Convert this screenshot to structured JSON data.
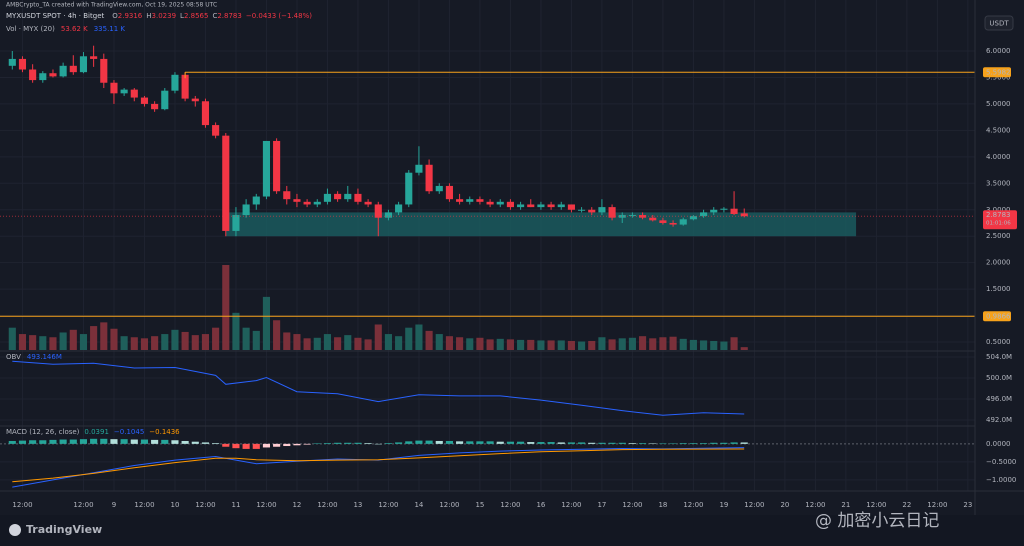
{
  "chart_data": {
    "type": "candlestick",
    "credit": "AMBCrypto_TA created with TradingView.com, Oct 19, 2025 08:58 UTC",
    "title": "MYXUSDT SPOT · 4h · Bitget",
    "ohlc_letters": [
      "O",
      "H",
      "L",
      "C"
    ],
    "change": "−0.0433 (−1.48%)",
    "currency": "USDT",
    "colors": {
      "up": "#26a69a",
      "down": "#f23645",
      "up_volume": "#1f5f5b",
      "down_volume": "#7b303a",
      "level": "#f7a21b",
      "zone": "#1a5b5e",
      "obv": "#2962ff",
      "macd": "#2962ff",
      "signal": "#ff9800"
    },
    "candles": {
      "open": [
        5.72,
        5.85,
        5.65,
        5.45,
        5.58,
        5.52,
        5.72,
        5.6,
        5.9,
        5.85,
        5.4,
        5.2,
        5.27,
        5.12,
        5.0,
        4.9,
        5.25,
        5.55,
        5.1,
        5.05,
        4.6,
        4.4,
        2.6,
        2.9,
        3.1,
        3.25,
        4.3,
        3.35,
        3.2,
        3.15,
        3.1,
        3.15,
        3.3,
        3.2,
        3.3,
        3.15,
        3.1,
        2.85,
        2.95,
        3.1,
        3.7,
        3.85,
        3.35,
        3.45,
        3.2,
        3.15,
        3.2,
        3.15,
        3.1,
        3.15,
        3.05,
        3.1,
        3.05,
        3.1,
        3.05,
        3.1,
        3.0,
        3.0,
        2.95,
        3.05,
        2.85,
        2.9,
        2.9,
        2.85,
        2.8,
        2.75,
        2.72,
        2.82,
        2.88,
        2.95,
        3.0,
        3.02,
        2.9316
      ],
      "high": [
        6.0,
        5.9,
        5.75,
        5.62,
        5.65,
        5.78,
        5.92,
        5.98,
        6.1,
        5.95,
        5.45,
        5.3,
        5.3,
        5.15,
        5.05,
        5.3,
        5.6,
        5.6,
        5.15,
        5.1,
        4.65,
        4.45,
        3.05,
        3.2,
        3.3,
        4.3,
        4.35,
        3.45,
        3.3,
        3.2,
        3.2,
        3.4,
        3.35,
        3.45,
        3.4,
        3.2,
        3.15,
        3.0,
        3.15,
        3.75,
        4.2,
        3.95,
        3.5,
        3.5,
        3.3,
        3.25,
        3.25,
        3.2,
        3.2,
        3.2,
        3.15,
        3.2,
        3.15,
        3.15,
        3.15,
        3.1,
        3.05,
        3.05,
        3.2,
        3.1,
        2.95,
        2.95,
        2.95,
        2.9,
        2.85,
        2.8,
        2.85,
        2.9,
        3.0,
        3.05,
        3.05,
        3.35,
        3.0239
      ],
      "low": [
        5.65,
        5.6,
        5.4,
        5.4,
        5.5,
        5.5,
        5.55,
        5.58,
        5.7,
        5.3,
        5.0,
        5.15,
        5.05,
        4.95,
        4.85,
        4.88,
        5.2,
        5.05,
        4.95,
        4.55,
        4.35,
        2.5,
        2.5,
        2.85,
        3.0,
        3.2,
        3.3,
        3.1,
        3.05,
        3.05,
        3.05,
        3.1,
        3.15,
        3.15,
        3.1,
        3.05,
        2.5,
        2.8,
        2.9,
        3.05,
        3.65,
        3.3,
        3.3,
        3.15,
        3.1,
        3.1,
        3.1,
        3.05,
        3.05,
        3.0,
        3.0,
        3.05,
        3.0,
        3.0,
        3.0,
        2.95,
        2.95,
        2.9,
        2.9,
        2.8,
        2.75,
        2.85,
        2.82,
        2.78,
        2.72,
        2.68,
        2.7,
        2.8,
        2.85,
        2.9,
        2.95,
        2.9,
        2.8565
      ],
      "close": [
        5.85,
        5.65,
        5.45,
        5.58,
        5.52,
        5.72,
        5.6,
        5.9,
        5.85,
        5.4,
        5.2,
        5.27,
        5.12,
        5.0,
        4.9,
        5.25,
        5.55,
        5.1,
        5.05,
        4.6,
        4.4,
        2.6,
        2.9,
        3.1,
        3.25,
        4.3,
        3.35,
        3.2,
        3.15,
        3.1,
        3.15,
        3.3,
        3.2,
        3.3,
        3.15,
        3.1,
        2.85,
        2.95,
        3.1,
        3.7,
        3.85,
        3.35,
        3.45,
        3.2,
        3.15,
        3.2,
        3.15,
        3.1,
        3.15,
        3.05,
        3.1,
        3.05,
        3.1,
        3.05,
        3.1,
        3.0,
        3.0,
        2.95,
        3.05,
        2.85,
        2.9,
        2.9,
        2.85,
        2.8,
        2.75,
        2.72,
        2.82,
        2.88,
        2.95,
        3.0,
        3.02,
        2.92,
        2.8783
      ]
    },
    "countdown": "01:01:06",
    "xlim": [
      -1.21,
      94.7
    ],
    "xticks": [
      {
        "value": 1,
        "label": "12:00"
      },
      {
        "value": 7,
        "label": "12:00"
      },
      {
        "value": 10,
        "label": "9"
      },
      {
        "value": 13,
        "label": "12:00"
      },
      {
        "value": 16,
        "label": "10"
      },
      {
        "value": 19,
        "label": "12:00"
      },
      {
        "value": 22,
        "label": "11"
      },
      {
        "value": 25,
        "label": "12:00"
      },
      {
        "value": 28,
        "label": "12"
      },
      {
        "value": 31,
        "label": "12:00"
      },
      {
        "value": 34,
        "label": "13"
      },
      {
        "value": 37,
        "label": "12:00"
      },
      {
        "value": 40,
        "label": "14"
      },
      {
        "value": 43,
        "label": "12:00"
      },
      {
        "value": 46,
        "label": "15"
      },
      {
        "value": 49,
        "label": "12:00"
      },
      {
        "value": 52,
        "label": "16"
      },
      {
        "value": 55,
        "label": "12:00"
      },
      {
        "value": 58,
        "label": "17"
      },
      {
        "value": 61,
        "label": "12:00"
      },
      {
        "value": 64,
        "label": "18"
      },
      {
        "value": 67,
        "label": "12:00"
      },
      {
        "value": 70,
        "label": "19"
      },
      {
        "value": 73,
        "label": "12:00"
      },
      {
        "value": 76,
        "label": "20"
      },
      {
        "value": 79,
        "label": "12:00"
      },
      {
        "value": 82,
        "label": "21"
      },
      {
        "value": 85,
        "label": "12:00"
      },
      {
        "value": 88,
        "label": "22"
      },
      {
        "value": 91,
        "label": "12:00"
      },
      {
        "value": 94,
        "label": "23"
      }
    ],
    "ylim": [
      0.35,
      6.68
    ],
    "yticks": [
      {
        "value": 0.5,
        "label": "0.5000"
      },
      {
        "value": 1,
        "label": "1.0000"
      },
      {
        "value": 1.5,
        "label": "1.5000"
      },
      {
        "value": 2,
        "label": "2.0000"
      },
      {
        "value": 2.5,
        "label": "2.5000"
      },
      {
        "value": 3,
        "label": "3.0000"
      },
      {
        "value": 3.5,
        "label": "3.5000"
      },
      {
        "value": 4,
        "label": "4.0000"
      },
      {
        "value": 4.5,
        "label": "4.5000"
      },
      {
        "value": 5,
        "label": "5.0000"
      },
      {
        "value": 5.5,
        "label": "5.5000"
      },
      {
        "value": 6,
        "label": "6.0000"
      }
    ],
    "levels": [
      {
        "value": 5.5982,
        "from": 17
      },
      {
        "value": 0.9866
      }
    ],
    "zone": {
      "low": 2.5,
      "high": 2.95,
      "from": 21,
      "to": 83
    },
    "volume": {
      "name": "Vol · MYX (20)",
      "last_label": "53.62 K",
      "ma_label": "335.11 K",
      "values": [
        420,
        300,
        280,
        260,
        240,
        330,
        380,
        300,
        450,
        520,
        400,
        260,
        240,
        220,
        260,
        300,
        380,
        340,
        280,
        300,
        420,
        1600,
        700,
        420,
        360,
        1000,
        560,
        330,
        300,
        220,
        230,
        300,
        240,
        280,
        230,
        200,
        480,
        300,
        260,
        420,
        480,
        360,
        300,
        260,
        240,
        220,
        230,
        200,
        210,
        200,
        190,
        190,
        180,
        180,
        180,
        170,
        160,
        170,
        240,
        200,
        220,
        230,
        260,
        220,
        240,
        250,
        210,
        190,
        180,
        170,
        160,
        240,
        53.62
      ]
    },
    "obv": {
      "name": "OBV",
      "value_label": "493.146M",
      "x": [
        0,
        4,
        8,
        12,
        16,
        20,
        21,
        24,
        25,
        28,
        32,
        36,
        40,
        44,
        48,
        52,
        56,
        60,
        64,
        68,
        72
      ],
      "values": [
        503.2,
        502.6,
        502.8,
        501.9,
        502.0,
        500.5,
        498.8,
        499.5,
        500.1,
        497.4,
        497.0,
        495.5,
        496.8,
        496.6,
        496.6,
        495.8,
        494.8,
        493.8,
        492.9,
        493.4,
        493.146
      ],
      "ylim": [
        491.05,
        504.95
      ],
      "yticks": [
        {
          "value": 492,
          "label": "492.0M"
        },
        {
          "value": 496,
          "label": "496.0M"
        },
        {
          "value": 500,
          "label": "500.0M"
        },
        {
          "value": 504,
          "label": "504.0M"
        }
      ]
    },
    "macd": {
      "name": "MACD (12, 26, close)",
      "legend_labels": [
        "0.0391",
        "−0.1045",
        "−0.1436"
      ],
      "histogram": [
        0.08,
        0.09,
        0.1,
        0.1,
        0.11,
        0.12,
        0.12,
        0.13,
        0.14,
        0.14,
        0.13,
        0.13,
        0.12,
        0.12,
        0.11,
        0.11,
        0.1,
        0.08,
        0.06,
        0.04,
        0.02,
        -0.08,
        -0.12,
        -0.14,
        -0.14,
        -0.1,
        -0.08,
        -0.06,
        -0.04,
        -0.02,
        0.01,
        0.02,
        0.03,
        0.03,
        0.03,
        0.02,
        0.0,
        0.02,
        0.04,
        0.07,
        0.09,
        0.09,
        0.08,
        0.08,
        0.07,
        0.07,
        0.07,
        0.07,
        0.06,
        0.06,
        0.06,
        0.05,
        0.05,
        0.05,
        0.04,
        0.04,
        0.04,
        0.03,
        0.03,
        0.03,
        0.03,
        0.02,
        0.02,
        0.01,
        0.01,
        0.01,
        0.02,
        0.02,
        0.02,
        0.03,
        0.03,
        0.04,
        0.0391
      ],
      "x": [
        0,
        4,
        8,
        12,
        16,
        20,
        22,
        24,
        28,
        32,
        36,
        40,
        44,
        48,
        52,
        56,
        60,
        64,
        68,
        72
      ],
      "macd_line": [
        -1.2,
        -1.0,
        -0.8,
        -0.6,
        -0.45,
        -0.35,
        -0.45,
        -0.55,
        -0.48,
        -0.42,
        -0.45,
        -0.32,
        -0.25,
        -0.2,
        -0.17,
        -0.15,
        -0.13,
        -0.14,
        -0.12,
        -0.1045
      ],
      "signal_line": [
        -1.05,
        -0.95,
        -0.82,
        -0.66,
        -0.52,
        -0.4,
        -0.4,
        -0.44,
        -0.47,
        -0.45,
        -0.44,
        -0.39,
        -0.33,
        -0.27,
        -0.22,
        -0.19,
        -0.16,
        -0.15,
        -0.145,
        -0.1436
      ],
      "ylim": [
        -1.28,
        0.44
      ],
      "yticks": [
        {
          "value": 0,
          "label": "0.0000"
        },
        {
          "value": -0.5,
          "label": "−0.5000"
        },
        {
          "value": -1,
          "label": "−1.0000"
        }
      ]
    },
    "brand": "TradingView",
    "watermark": "@ 加密小云日记"
  }
}
